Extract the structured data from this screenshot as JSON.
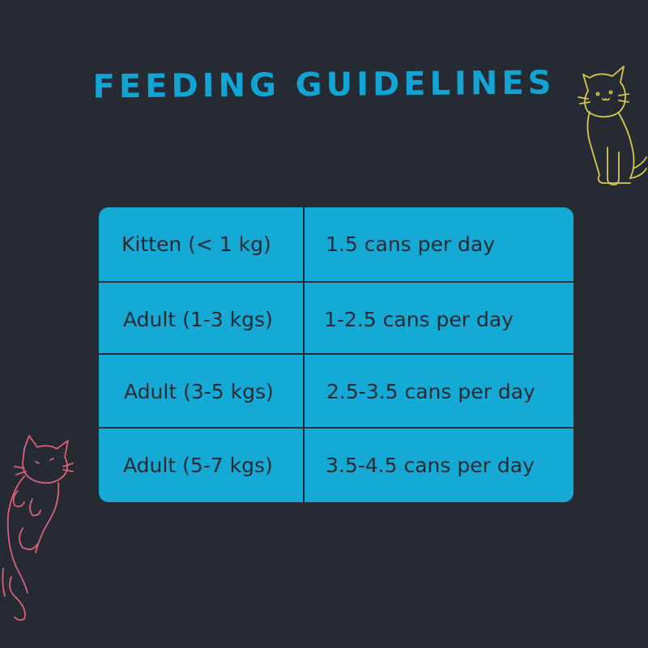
{
  "title": "FEEDING GUIDELINES",
  "rows": [
    {
      "weight": "Kitten (< 1 kg)",
      "amount": "1.5 cans per day"
    },
    {
      "weight": "Adult (1-3 kgs)",
      "amount": "1-2.5 cans per day"
    },
    {
      "weight": "Adult (3-5 kgs)",
      "amount": "2.5-3.5 cans per day"
    },
    {
      "weight": "Adult (5-7 kgs)",
      "amount": "3.5-4.5 cans per day"
    }
  ],
  "colors": {
    "background": "#262a33",
    "title": "#13a4d6",
    "table": "#15a9d6",
    "cat_yellow": "#d6c84a",
    "cat_pink": "#d9607a"
  },
  "icons": [
    "sitting-cat-doodle-icon",
    "lying-cat-doodle-icon"
  ]
}
